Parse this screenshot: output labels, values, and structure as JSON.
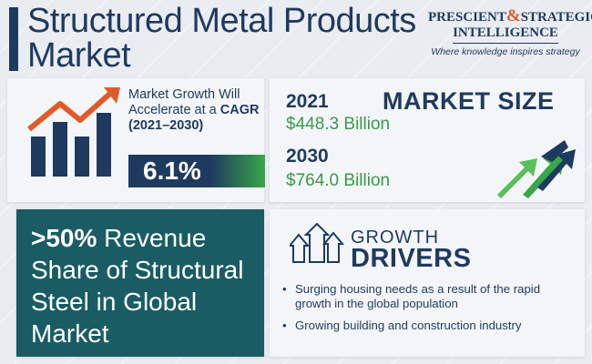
{
  "header": {
    "title": "Structured Metal Products Market",
    "logo": {
      "line1_a": "PRESCIENT",
      "line1_amp": "&",
      "line1_b": "STRATEGIC",
      "line2": "INTELLIGENCE",
      "tagline": "Where knowledge inspires strategy"
    }
  },
  "growth": {
    "text_a": "Market Growth Will Accelerate at a ",
    "cagr_label": "CAGR",
    "period": "(2021–2030)",
    "cagr_value": "6.1%",
    "icon": "rising-bar-chart-icon"
  },
  "market_size": {
    "title": "MARKET SIZE",
    "year1": "2021",
    "value1": "$448.3 Billion",
    "year2": "2030",
    "value2": "$764.0 Billion",
    "icon": "rising-arrows-icon"
  },
  "share": {
    "pct": ">50%",
    "text": " Revenue Share of Structural Steel in Global Market"
  },
  "drivers": {
    "title1": "GROWTH",
    "title2": "DRIVERS",
    "icon": "up-arrows-icon",
    "items": [
      "Surging housing needs as a result of the rapid growth in the global population",
      "Growing building and construction industry"
    ]
  },
  "colors": {
    "navy": "#1f3a5f",
    "green": "#3aa64a",
    "orange": "#e05a2a",
    "teal": "#1a5c63"
  }
}
